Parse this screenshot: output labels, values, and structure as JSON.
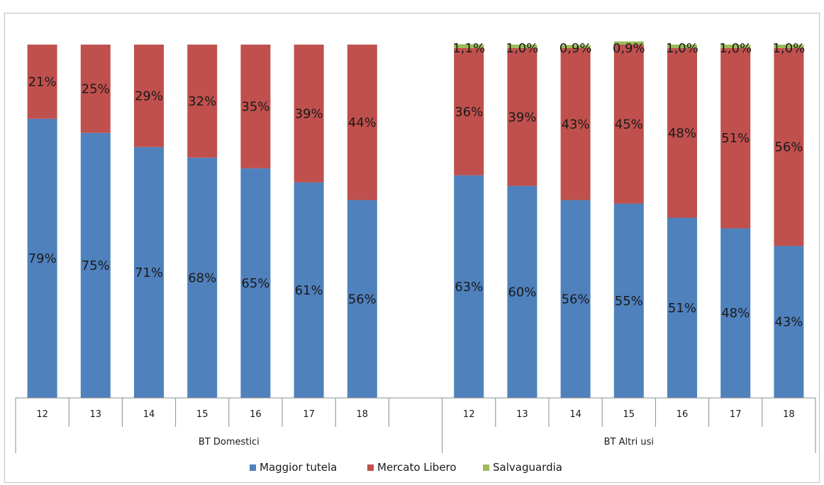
{
  "chart_data": {
    "type": "bar",
    "stacked": "percent",
    "groups": [
      {
        "name": "BT Domestici",
        "categories": [
          "12",
          "13",
          "14",
          "15",
          "16",
          "17",
          "18"
        ],
        "series": [
          {
            "name": "Maggior tutela",
            "values": [
              79,
              75,
              71,
              68,
              65,
              61,
              56
            ],
            "labels": [
              "79%",
              "75%",
              "71%",
              "68%",
              "65%",
              "61%",
              "56%"
            ]
          },
          {
            "name": "Mercato Libero",
            "values": [
              21,
              25,
              29,
              32,
              35,
              39,
              44
            ],
            "labels": [
              "21%",
              "25%",
              "29%",
              "32%",
              "35%",
              "39%",
              "44%"
            ]
          }
        ]
      },
      {
        "name": "BT Altri usi",
        "categories": [
          "12",
          "13",
          "14",
          "15",
          "16",
          "17",
          "18"
        ],
        "series": [
          {
            "name": "Maggior tutela",
            "values": [
              63,
              60,
              56,
              55,
              51,
              48,
              43
            ],
            "labels": [
              "63%",
              "60%",
              "56%",
              "55%",
              "51%",
              "48%",
              "43%"
            ]
          },
          {
            "name": "Mercato Libero",
            "values": [
              36,
              39,
              43,
              45,
              48,
              51,
              56
            ],
            "labels": [
              "36%",
              "39%",
              "43%",
              "45%",
              "48%",
              "51%",
              "56%"
            ]
          },
          {
            "name": "Salvaguardia",
            "values": [
              1.1,
              1.0,
              0.9,
              0.9,
              1.0,
              1.0,
              1.0
            ],
            "labels": [
              "1,1%",
              "1,0%",
              "0,9%",
              "0,9%",
              "1,0%",
              "1,0%",
              "1,0%"
            ]
          }
        ]
      }
    ],
    "legend": {
      "position": "bottom",
      "entries": [
        "Maggior tutela",
        "Mercato Libero",
        "Salvaguardia"
      ]
    },
    "colors": {
      "Maggior tutela": "#4f81bd",
      "Mercato Libero": "#c0504d",
      "Salvaguardia": "#9bbb59"
    },
    "ylim": [
      0,
      100
    ],
    "grid": false
  }
}
